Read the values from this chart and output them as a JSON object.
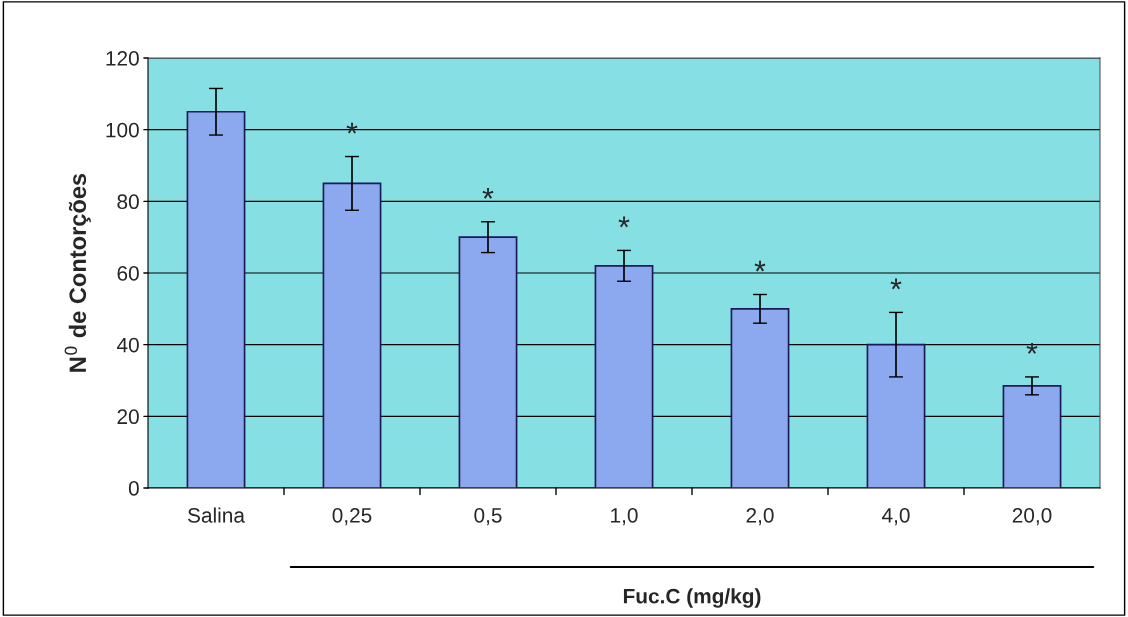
{
  "chart_data": {
    "type": "bar",
    "xlabel": "Fuc.C (mg/kg)",
    "ylabel": "N$^{0}$ de Contorções",
    "categories": [
      "Salina",
      "0,25",
      "0,5",
      "1,0",
      "2,0",
      "4,0",
      "20,0"
    ],
    "values": [
      105,
      85,
      70,
      62,
      50,
      40,
      28.5
    ],
    "errors": [
      6.5,
      7.5,
      4.3,
      4.3,
      4,
      9,
      2.5
    ],
    "color": "#8ca8ee",
    "ylim": [
      0,
      120
    ],
    "yticks": [
      0,
      20,
      40,
      60,
      80,
      100,
      120
    ],
    "grid": "y",
    "annotations": [
      "*",
      "*",
      "*",
      "*",
      "*",
      "*"
    ]
  }
}
